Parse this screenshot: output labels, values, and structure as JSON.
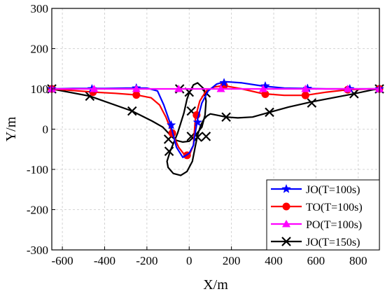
{
  "chart_data": {
    "type": "line",
    "xlabel": "X/m",
    "ylabel": "Y/m",
    "xlim": [
      -650,
      900
    ],
    "ylim": [
      -300,
      300
    ],
    "x_ticks": [
      -600,
      -400,
      -200,
      0,
      200,
      400,
      600,
      800
    ],
    "y_ticks": [
      -300,
      -200,
      -100,
      0,
      100,
      200,
      300
    ],
    "grid": true,
    "legend_position": "bottom-right",
    "series": [
      {
        "name": "JO(T=100s)",
        "color": "#0000ff",
        "marker": "star",
        "x": [
          -650,
          -550,
          -400,
          -300,
          -200,
          -150,
          -120,
          -90,
          -60,
          -30,
          0,
          20,
          30,
          40,
          60,
          90,
          130,
          170,
          250,
          350,
          450,
          550,
          650,
          750,
          850,
          900
        ],
        "y": [
          100,
          101,
          101,
          102,
          102,
          95,
          60,
          15,
          -45,
          -70,
          -60,
          -40,
          -5,
          25,
          65,
          95,
          112,
          118,
          115,
          107,
          102,
          101,
          100,
          100,
          100,
          100
        ],
        "marker_x": [
          -650,
          -460,
          -250,
          -85,
          40,
          165,
          360,
          560,
          760,
          900
        ],
        "marker_y": [
          100,
          100,
          102,
          10,
          17,
          115,
          107,
          101,
          100,
          100
        ]
      },
      {
        "name": "TO(T=100s)",
        "color": "#ff0000",
        "marker": "circle",
        "x": [
          -650,
          -550,
          -450,
          -350,
          -250,
          -180,
          -140,
          -110,
          -80,
          -50,
          -20,
          0,
          20,
          30,
          50,
          80,
          120,
          165,
          250,
          350,
          450,
          550,
          650,
          750,
          850,
          900
        ],
        "y": [
          100,
          96,
          92,
          89,
          85,
          78,
          60,
          30,
          -10,
          -45,
          -65,
          -65,
          -40,
          30,
          70,
          95,
          105,
          108,
          100,
          88,
          84,
          84,
          92,
          98,
          100,
          100
        ],
        "marker_x": [
          -650,
          -455,
          -250,
          -80,
          -10,
          35,
          165,
          360,
          550,
          750,
          900
        ],
        "marker_y": [
          100,
          92,
          85,
          -10,
          -65,
          35,
          108,
          87,
          84,
          98,
          100
        ]
      },
      {
        "name": "PO(T=100s)",
        "color": "#ff00ff",
        "marker": "triangle",
        "x": [
          -650,
          900
        ],
        "y": [
          100,
          100
        ],
        "marker_x": [
          -650,
          -450,
          -250,
          -50,
          150,
          350,
          550,
          750,
          900
        ],
        "marker_y": [
          100,
          100,
          100,
          100,
          100,
          100,
          100,
          100,
          100
        ]
      },
      {
        "name": "JO(T=150s)",
        "color": "#000000",
        "marker": "x",
        "x": [
          -650,
          -470,
          -270,
          -175,
          -125,
          -98,
          -80,
          -60,
          -30,
          0,
          30,
          60,
          75,
          80,
          70,
          40,
          20,
          5,
          0,
          -10,
          -25,
          -55,
          -90,
          -105,
          -100,
          -75,
          -40,
          -10,
          15,
          30,
          40,
          55,
          70,
          85,
          100,
          130,
          175,
          230,
          300,
          380,
          470,
          580,
          680,
          780,
          870,
          900
        ],
        "y": [
          100,
          82,
          45,
          20,
          5,
          -10,
          -20,
          -28,
          -32,
          -30,
          -15,
          5,
          35,
          70,
          100,
          115,
          110,
          95,
          90,
          75,
          40,
          -10,
          -55,
          -80,
          -95,
          -110,
          -115,
          -105,
          -80,
          -40,
          -15,
          10,
          25,
          33,
          38,
          35,
          30,
          28,
          30,
          42,
          55,
          68,
          78,
          88,
          98,
          100
        ],
        "marker_x": [
          -650,
          -470,
          -270,
          -98,
          -95,
          -45,
          0,
          10,
          10,
          40,
          80,
          80,
          175,
          380,
          580,
          780,
          900
        ],
        "marker_y": [
          100,
          82,
          45,
          -25,
          -55,
          100,
          92,
          45,
          -18,
          -20,
          90,
          -18,
          30,
          42,
          65,
          88,
          100
        ]
      }
    ]
  }
}
